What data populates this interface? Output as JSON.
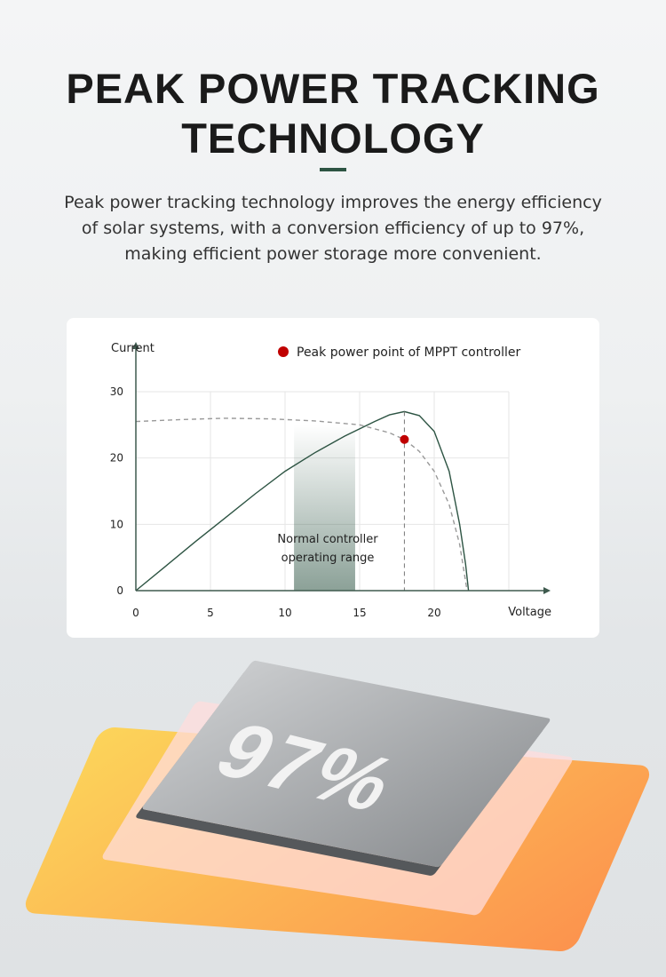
{
  "header": {
    "title": "PEAK POWER TRACKING TECHNOLOGY",
    "description": "Peak power tracking technology improves the energy efficiency of solar systems, with a conversion efficiency of up to 97%, making efficient power storage more convenient.",
    "accent": "#2d5443"
  },
  "chart_data": {
    "type": "line",
    "ylabel": "Current",
    "xlabel": "Voltage",
    "xlim": [
      0,
      25
    ],
    "ylim": [
      0,
      30
    ],
    "xticks": [
      "0",
      "5",
      "10",
      "15",
      "20"
    ],
    "yticks": [
      "0",
      "10",
      "20",
      "30"
    ],
    "grid": true,
    "legend": {
      "label": "Peak power point of MPPT controller",
      "position": "top-right",
      "color": "#c00000"
    },
    "series": [
      {
        "style": "solid",
        "color": "#2d5443",
        "points": [
          [
            0,
            0
          ],
          [
            2,
            3.7
          ],
          [
            4,
            7.4
          ],
          [
            6,
            11
          ],
          [
            8,
            14.6
          ],
          [
            10,
            18
          ],
          [
            12,
            20.8
          ],
          [
            14,
            23.3
          ],
          [
            16,
            25.5
          ],
          [
            17,
            26.5
          ],
          [
            18,
            27
          ],
          [
            19,
            26.4
          ],
          [
            20,
            24
          ],
          [
            21,
            18
          ],
          [
            21.7,
            10
          ],
          [
            22.1,
            4
          ],
          [
            22.3,
            0
          ]
        ]
      },
      {
        "style": "dashed",
        "color": "#999999",
        "points": [
          [
            0,
            25.5
          ],
          [
            3,
            25.8
          ],
          [
            6,
            26
          ],
          [
            9,
            25.9
          ],
          [
            12,
            25.6
          ],
          [
            15,
            25
          ],
          [
            17,
            23.8
          ],
          [
            18,
            22.8
          ],
          [
            19,
            21
          ],
          [
            20,
            18
          ],
          [
            21,
            13
          ],
          [
            21.7,
            7
          ],
          [
            22.2,
            0
          ]
        ]
      }
    ],
    "peak_point": [
      18,
      22.8
    ],
    "range": {
      "from": 10.6,
      "to": 14.7,
      "label_line1": "Normal controller",
      "label_line2": "operating range"
    }
  },
  "badge": {
    "value": "97%"
  }
}
